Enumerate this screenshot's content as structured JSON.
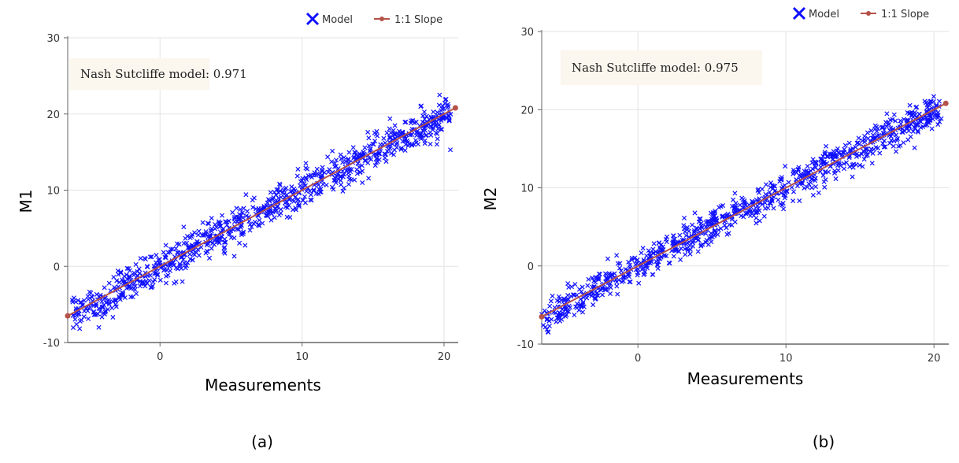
{
  "colors": {
    "model": "#1010ff",
    "slope": "#b5524a",
    "grid": "#e3e3e3",
    "axis": "#666666",
    "annot_bg": "#fbf6ee"
  },
  "chart_data": [
    {
      "type": "scatter",
      "caption": "(a)",
      "xlabel": "Measurements",
      "ylabel": "M1",
      "xlim": [
        -6.5,
        21
      ],
      "ylim": [
        -10,
        30
      ],
      "xticks": [
        0,
        10,
        20
      ],
      "yticks": [
        -10,
        0,
        10,
        20,
        30
      ],
      "annotation": "Nash Sutcliffe model: 0.971",
      "legend": [
        "Model",
        "1:1 Slope"
      ],
      "legend_position": "top-right",
      "series": [
        {
          "name": "Model",
          "marker": "x",
          "trend": {
            "x_range": [
              -6.5,
              20.5
            ],
            "intercept": 0,
            "slope": 1,
            "spread": 1.2
          }
        },
        {
          "name": "1:1 Slope",
          "marker": "line",
          "x": [
            -6.5,
            20.8
          ],
          "y": [
            -6.5,
            20.8
          ]
        }
      ]
    },
    {
      "type": "scatter",
      "caption": "(b)",
      "xlabel": "Measurements",
      "ylabel": "M2",
      "xlim": [
        -6.5,
        21
      ],
      "ylim": [
        -10,
        30
      ],
      "xticks": [
        0,
        10,
        20
      ],
      "yticks": [
        -10,
        0,
        10,
        20,
        30
      ],
      "annotation": "Nash Sutcliffe model: 0.975",
      "legend": [
        "Model",
        "1:1 Slope"
      ],
      "legend_position": "top-right",
      "series": [
        {
          "name": "Model",
          "marker": "x",
          "trend": {
            "x_range": [
              -6.5,
              20.5
            ],
            "intercept": 0,
            "slope": 1,
            "spread": 1.05
          }
        },
        {
          "name": "1:1 Slope",
          "marker": "line",
          "x": [
            -6.5,
            20.8
          ],
          "y": [
            -6.5,
            20.8
          ]
        }
      ]
    }
  ]
}
